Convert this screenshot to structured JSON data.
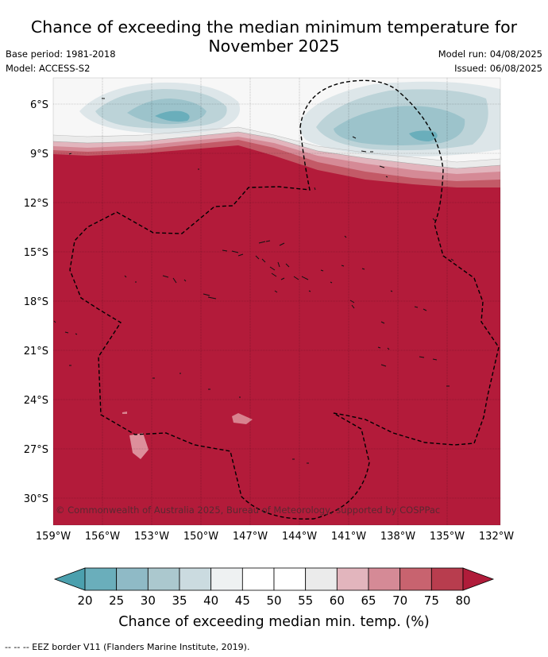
{
  "title": "Chance of exceeding the median minimum temperature for",
  "title_line2": "November 2025",
  "base_period": "Base period: 1981-2018",
  "model": "Model: ACCESS-S2",
  "model_run": "Model run: 04/08/2025",
  "issued": "Issued: 06/08/2025",
  "copyright": "© Commonwealth of Australia 2025, Bureau of Meteorology, supported by COSPPac",
  "lat_labels": [
    "6°S",
    "9°S",
    "12°S",
    "15°S",
    "18°S",
    "21°S",
    "24°S",
    "27°S",
    "30°S"
  ],
  "lon_labels": [
    "159°W",
    "156°W",
    "153°W",
    "150°W",
    "147°W",
    "144°W",
    "141°W",
    "138°W",
    "135°W",
    "132°W"
  ],
  "colorbar": {
    "ticks": [
      "20",
      "25",
      "30",
      "35",
      "40",
      "45",
      "50",
      "55",
      "60",
      "65",
      "70",
      "75",
      "80"
    ],
    "colors": [
      "#6aaebb",
      "#8fbac6",
      "#abc8ce",
      "#cbdbe0",
      "#eef1f2",
      "#ffffff",
      "#ffffff",
      "#ebebeb",
      "#e2b5bd",
      "#d58a96",
      "#c8636f",
      "#b83d4e"
    ],
    "under_color": "#4ba0ae",
    "over_color": "#b01c3a",
    "label": "Chance of exceeding median min. temp. (%)"
  },
  "map_colors": {
    "main": "#b31b3a",
    "light": "#f5f6f6",
    "blue": "#aecbd1"
  },
  "footnote": "-- -- -- EEZ border V11 (Flanders Marine Institute, 2019)."
}
